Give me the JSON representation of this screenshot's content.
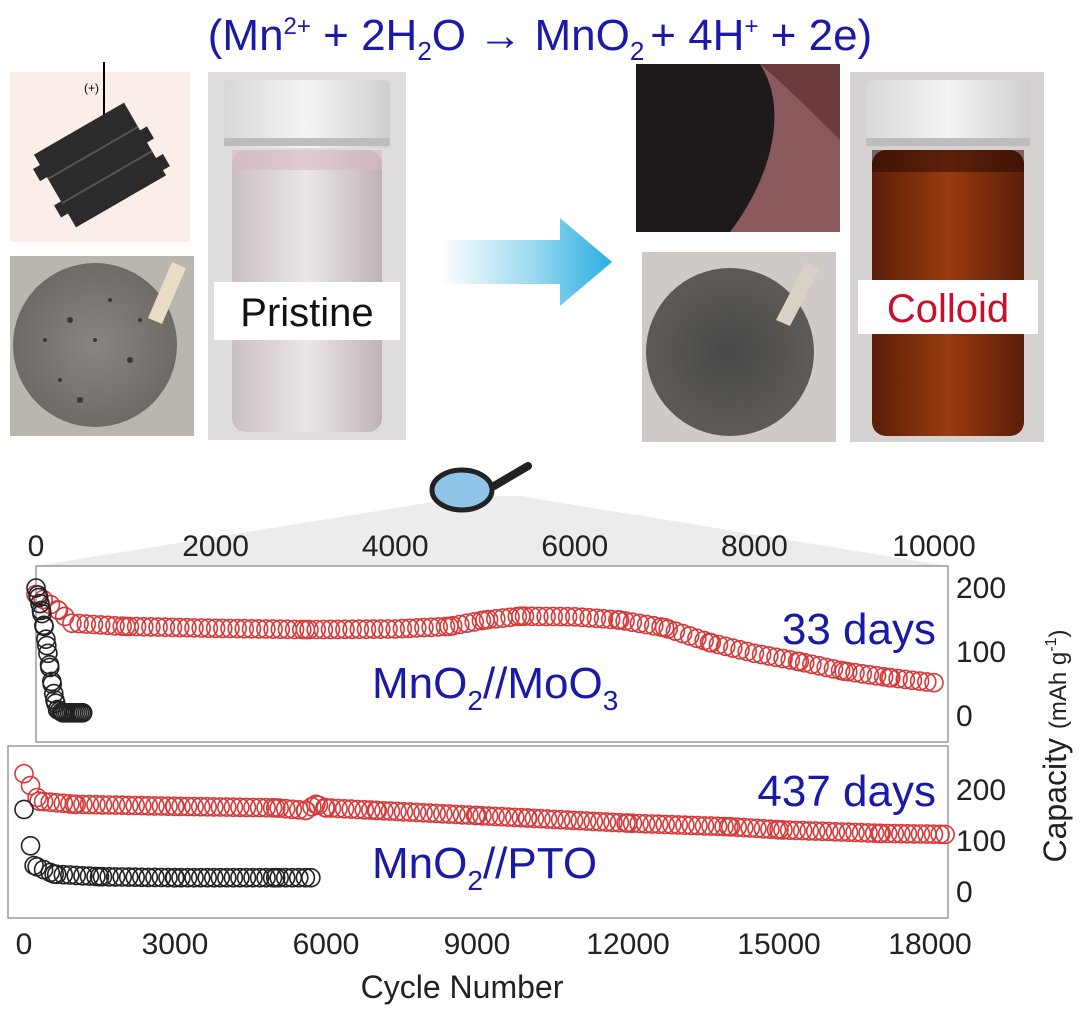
{
  "equation": {
    "open": "(Mn",
    "mn_charge": "2+",
    "plus1": " + 2H",
    "h_sub": "2",
    "o_arrow_mno": "O → MnO",
    "o_sub": "2",
    "tail": "+ 4H",
    "h_charge": "+",
    "end": " + 2e)"
  },
  "illustration": {
    "electrode_label": "(+)",
    "pristine_label": "Pristine",
    "colloid_label": "Colloid",
    "colors": {
      "equation": "#1a1aa8",
      "colloid_text": "#c8102e",
      "arrow": "#28aee0"
    }
  },
  "chart_data": [
    {
      "type": "scatter",
      "name": "top-panel",
      "x_top_axis": {
        "range": [
          0,
          10000
        ],
        "ticks": [
          0,
          2000,
          4000,
          6000,
          8000,
          10000
        ]
      },
      "ylim": [
        0,
        200
      ],
      "yticks": [
        0,
        100,
        200
      ],
      "annotation_days": "33 days",
      "annotation_name": {
        "main": "MnO",
        "s1": "2",
        "mid": "//MoO",
        "s2": "3"
      },
      "series": [
        {
          "color": "#d63a3a",
          "points": [
            [
              0,
              190
            ],
            [
              250,
              165
            ],
            [
              400,
              145
            ],
            [
              1000,
              140
            ],
            [
              2000,
              137
            ],
            [
              3000,
              135
            ],
            [
              4000,
              136
            ],
            [
              4600,
              140
            ],
            [
              5000,
              150
            ],
            [
              5400,
              156
            ],
            [
              6000,
              155
            ],
            [
              6500,
              150
            ],
            [
              7000,
              138
            ],
            [
              7500,
              115
            ],
            [
              8000,
              98
            ],
            [
              8500,
              85
            ],
            [
              9000,
              70
            ],
            [
              9500,
              60
            ],
            [
              10000,
              52
            ]
          ]
        },
        {
          "color": "#222222",
          "points": [
            [
              0,
              200
            ],
            [
              30,
              185
            ],
            [
              60,
              165
            ],
            [
              90,
              140
            ],
            [
              120,
              110
            ],
            [
              150,
              80
            ],
            [
              180,
              50
            ],
            [
              210,
              25
            ],
            [
              240,
              10
            ],
            [
              300,
              5
            ],
            [
              520,
              5
            ]
          ]
        }
      ]
    },
    {
      "type": "scatter",
      "name": "bottom-panel",
      "xlim": [
        0,
        18500
      ],
      "xticks": [
        0,
        3000,
        6000,
        9000,
        12000,
        15000,
        18000
      ],
      "xlabel": "Cycle Number",
      "ylim": [
        0,
        250
      ],
      "yticks": [
        0,
        100,
        200
      ],
      "ylabel_main": "Capacity ",
      "ylabel_unit_open": "(mAh g",
      "ylabel_sup": "-1",
      "ylabel_close": ")",
      "annotation_days": "437 days",
      "annotation_name": {
        "main": "MnO",
        "s1": "2",
        "mid": "//PTO"
      },
      "series": [
        {
          "color": "#d63a3a",
          "points": [
            [
              0,
              232
            ],
            [
              300,
              178
            ],
            [
              1000,
              172
            ],
            [
              3000,
              168
            ],
            [
              5000,
              165
            ],
            [
              5600,
              160
            ],
            [
              5800,
              172
            ],
            [
              6000,
              165
            ],
            [
              7000,
              160
            ],
            [
              9000,
              150
            ],
            [
              10000,
              145
            ],
            [
              12000,
              135
            ],
            [
              14000,
              128
            ],
            [
              15000,
              122
            ],
            [
              17000,
              115
            ],
            [
              18300,
              113
            ]
          ]
        },
        {
          "color": "#222222",
          "points": [
            [
              0,
              162
            ],
            [
              200,
              52
            ],
            [
              600,
              35
            ],
            [
              1500,
              30
            ],
            [
              3000,
              28
            ],
            [
              5000,
              28
            ],
            [
              5700,
              28
            ]
          ]
        }
      ]
    }
  ]
}
